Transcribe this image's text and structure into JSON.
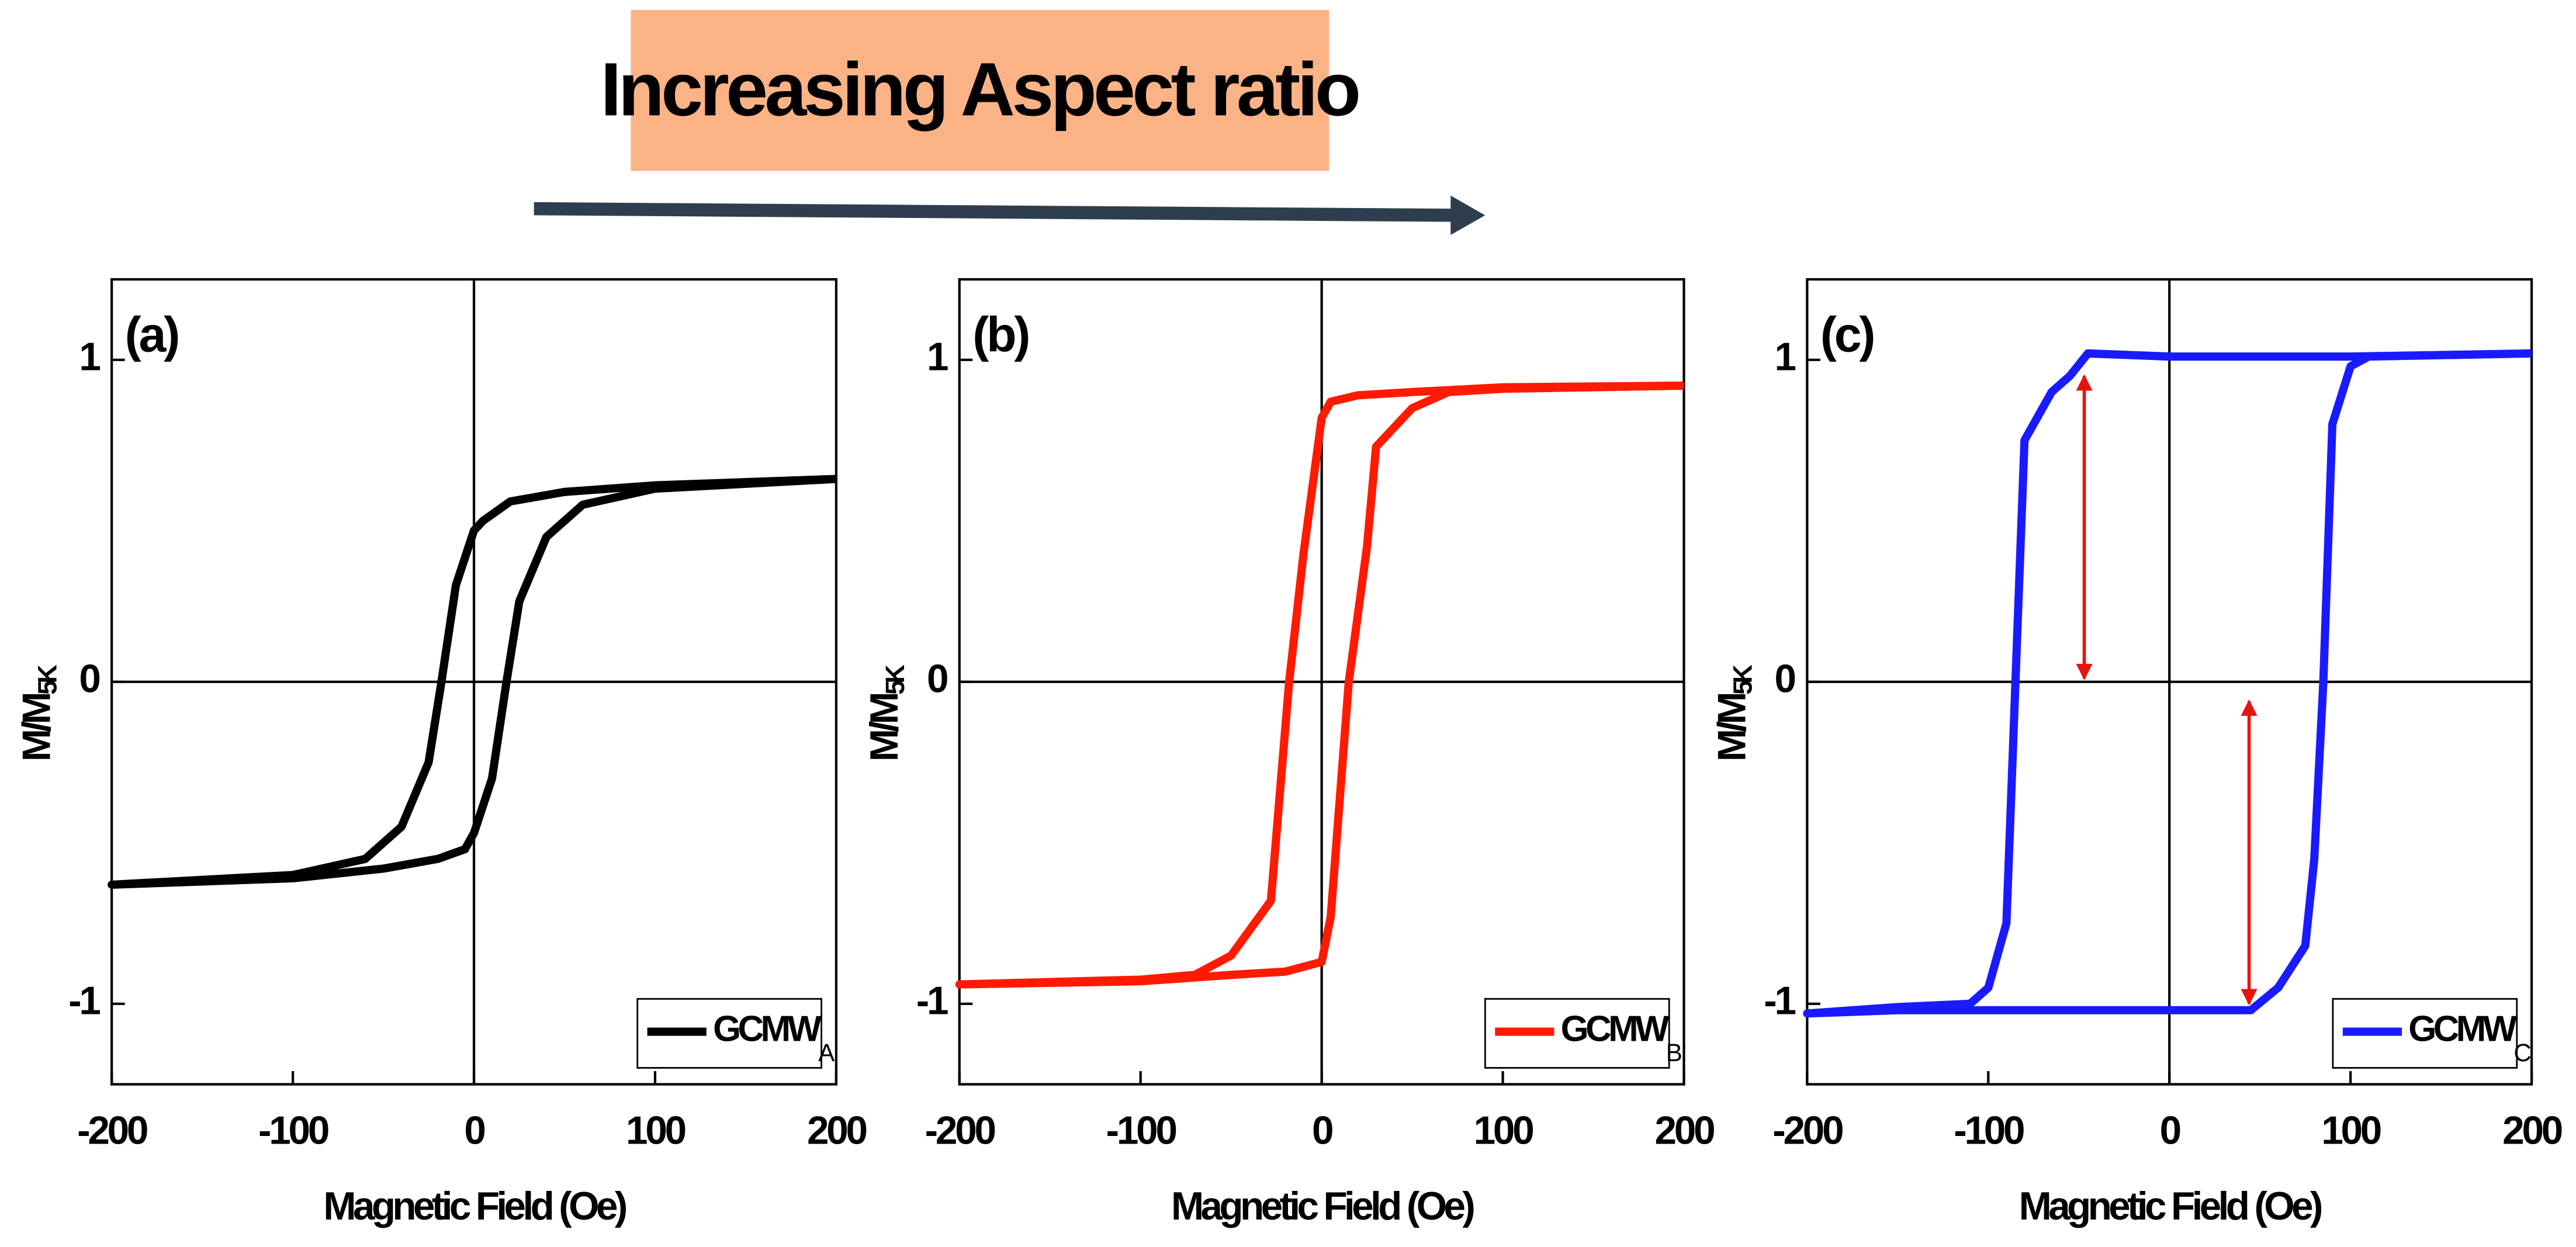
{
  "header": {
    "text": "Increasing Aspect ratio"
  },
  "chart_data": [
    {
      "type": "line",
      "panel_label": "(a)",
      "xlabel": "Magnetic Field (Oe)",
      "ylabel": {
        "text": "M/M",
        "sub": "5K"
      },
      "xlim": [
        -200,
        200
      ],
      "ylim": [
        -1.25,
        1.25
      ],
      "xticks": [
        -200,
        -100,
        0,
        100,
        200
      ],
      "yticks": [
        -1,
        0,
        1
      ],
      "series": [
        {
          "name": "GCMW",
          "name_sub": "A",
          "color": "#000000",
          "x": [
            200,
            100,
            50,
            20,
            5,
            0,
            -10,
            -18,
            -25,
            -40,
            -60,
            -100,
            -200,
            -100,
            -50,
            -20,
            -5,
            0,
            10,
            18,
            25,
            40,
            60,
            100,
            200
          ],
          "values": [
            0.63,
            0.61,
            0.59,
            0.56,
            0.5,
            0.47,
            0.3,
            0,
            -0.25,
            -0.45,
            -0.55,
            -0.6,
            -0.63,
            -0.61,
            -0.58,
            -0.55,
            -0.52,
            -0.47,
            -0.3,
            0,
            0.25,
            0.45,
            0.55,
            0.6,
            0.63
          ]
        }
      ]
    },
    {
      "type": "line",
      "panel_label": "(b)",
      "xlabel": "Magnetic Field (Oe)",
      "ylabel": {
        "text": "M/M",
        "sub": "5K"
      },
      "xlim": [
        -200,
        200
      ],
      "ylim": [
        -1.25,
        1.25
      ],
      "xticks": [
        -200,
        -100,
        0,
        100,
        200
      ],
      "yticks": [
        -1,
        0,
        1
      ],
      "series": [
        {
          "name": "GCMW",
          "name_sub": "B",
          "color": "#ff1a00",
          "x": [
            200,
            100,
            50,
            20,
            5,
            0,
            -10,
            -18,
            -28,
            -50,
            -70,
            -100,
            -200,
            -100,
            -50,
            -20,
            0,
            5,
            15,
            25,
            30,
            50,
            70,
            100,
            200
          ],
          "values": [
            0.92,
            0.915,
            0.9,
            0.89,
            0.87,
            0.82,
            0.4,
            0,
            -0.68,
            -0.85,
            -0.91,
            -0.925,
            -0.94,
            -0.93,
            -0.91,
            -0.9,
            -0.87,
            -0.73,
            0,
            0.42,
            0.73,
            0.85,
            0.9,
            0.91,
            0.92
          ]
        }
      ]
    },
    {
      "type": "line",
      "panel_label": "(c)",
      "xlabel": "Magnetic Field (Oe)",
      "ylabel": {
        "text": "M/M",
        "sub": "5K"
      },
      "xlim": [
        -200,
        200
      ],
      "ylim": [
        -1.25,
        1.25
      ],
      "xticks": [
        -200,
        -100,
        0,
        100,
        200
      ],
      "yticks": [
        -1,
        0,
        1
      ],
      "series": [
        {
          "name": "GCMW",
          "name_sub": "C",
          "color": "#1a1aff",
          "x": [
            200,
            100,
            50,
            0,
            -45,
            -55,
            -65,
            -80,
            -85,
            -90,
            -100,
            -110,
            -150,
            -200,
            -150,
            -100,
            0,
            45,
            60,
            75,
            80,
            85,
            90,
            100,
            110,
            200
          ],
          "values": [
            1.02,
            1.01,
            1.01,
            1.01,
            1.02,
            0.95,
            0.9,
            0.75,
            0,
            -0.75,
            -0.95,
            -1.0,
            -1.01,
            -1.03,
            -1.02,
            -1.02,
            -1.02,
            -1.02,
            -0.95,
            -0.82,
            -0.55,
            0,
            0.8,
            0.98,
            1.01,
            1.02
          ]
        }
      ]
    }
  ]
}
